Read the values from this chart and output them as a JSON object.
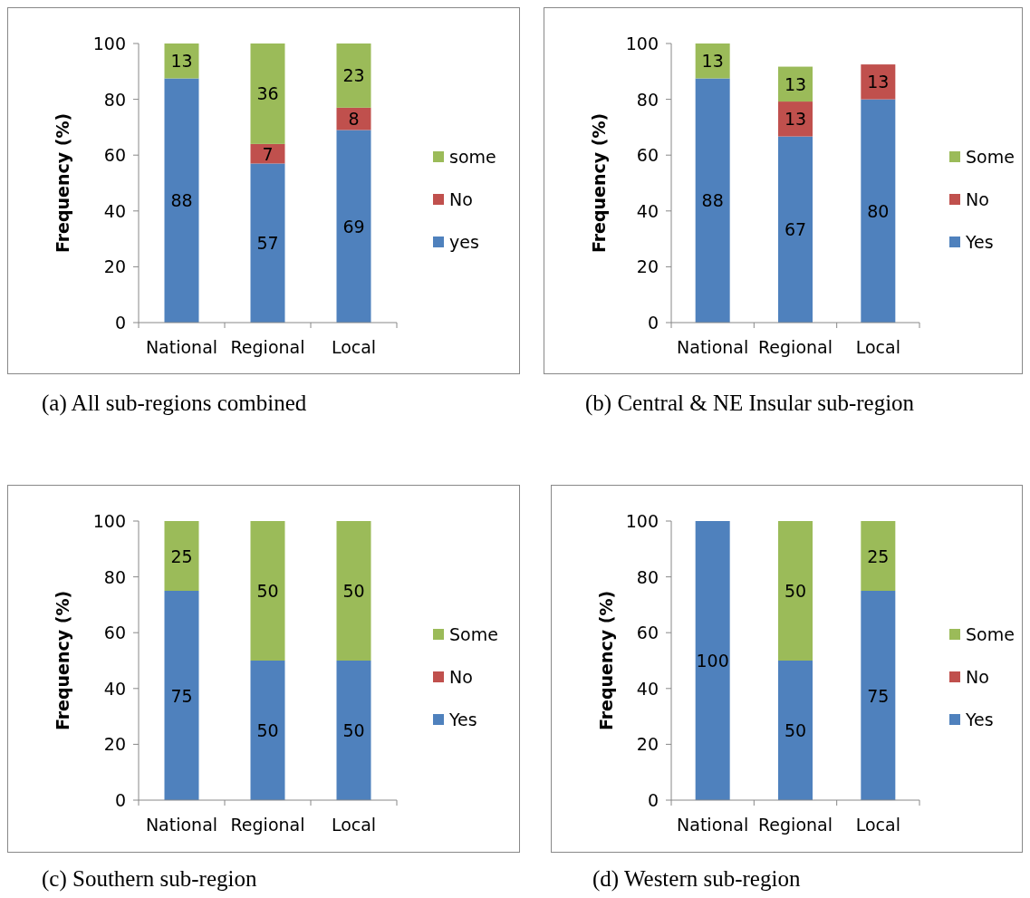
{
  "chart_data": [
    {
      "type": "bar",
      "stacked": true,
      "title": "(a) All sub-regions combined",
      "ylabel": "Frequency (%)",
      "categories": [
        "National",
        "Regional",
        "Local"
      ],
      "ylim": [
        0,
        100
      ],
      "yticks": [
        0,
        20,
        40,
        60,
        80,
        100
      ],
      "legend": "right",
      "series": [
        {
          "name": "yes",
          "color": "#4f81bd",
          "values": [
            87.5,
            57,
            69
          ],
          "value_labels": [
            "88",
            "57",
            "69"
          ]
        },
        {
          "name": "No",
          "color": "#c0504d",
          "values": [
            null,
            7,
            8
          ],
          "value_labels": [
            null,
            "7",
            "8"
          ]
        },
        {
          "name": "some",
          "color": "#9bbb59",
          "values": [
            12.5,
            36,
            23
          ],
          "value_labels": [
            "13",
            "36",
            "23"
          ]
        }
      ]
    },
    {
      "type": "bar",
      "stacked": true,
      "title": "(b) Central & NE Insular sub-region",
      "ylabel": "Frequency (%)",
      "categories": [
        "National",
        "Regional",
        "Local"
      ],
      "ylim": [
        0,
        100
      ],
      "yticks": [
        0,
        20,
        40,
        60,
        80,
        100
      ],
      "legend": "right",
      "series": [
        {
          "name": "Yes",
          "color": "#4f81bd",
          "values": [
            87.5,
            66.7,
            80
          ],
          "value_labels": [
            "88",
            "67",
            "80"
          ]
        },
        {
          "name": "No",
          "color": "#c0504d",
          "values": [
            null,
            12.5,
            12.5
          ],
          "value_labels": [
            null,
            "13",
            "13"
          ]
        },
        {
          "name": "Some",
          "color": "#9bbb59",
          "values": [
            12.5,
            12.5,
            null
          ],
          "value_labels": [
            "13",
            "13",
            null
          ]
        }
      ]
    },
    {
      "type": "bar",
      "stacked": true,
      "title": "(c) Southern sub-region",
      "ylabel": "Frequency (%)",
      "categories": [
        "National",
        "Regional",
        "Local"
      ],
      "ylim": [
        0,
        100
      ],
      "yticks": [
        0,
        20,
        40,
        60,
        80,
        100
      ],
      "legend": "right",
      "series": [
        {
          "name": "Yes",
          "color": "#4f81bd",
          "values": [
            75,
            50,
            50
          ],
          "value_labels": [
            "75",
            "50",
            "50"
          ]
        },
        {
          "name": "No",
          "color": "#c0504d",
          "values": [
            null,
            null,
            null
          ],
          "value_labels": [
            null,
            null,
            null
          ]
        },
        {
          "name": "Some",
          "color": "#9bbb59",
          "values": [
            25,
            50,
            50
          ],
          "value_labels": [
            "25",
            "50",
            "50"
          ]
        }
      ]
    },
    {
      "type": "bar",
      "stacked": true,
      "title": "(d) Western sub-region",
      "ylabel": "Frequency (%)",
      "categories": [
        "National",
        "Regional",
        "Local"
      ],
      "ylim": [
        0,
        100
      ],
      "yticks": [
        0,
        20,
        40,
        60,
        80,
        100
      ],
      "legend": "right",
      "series": [
        {
          "name": "Yes",
          "color": "#4f81bd",
          "values": [
            100,
            50,
            75
          ],
          "value_labels": [
            "100",
            "50",
            "75"
          ]
        },
        {
          "name": "No",
          "color": "#c0504d",
          "values": [
            null,
            null,
            null
          ],
          "value_labels": [
            null,
            null,
            null
          ]
        },
        {
          "name": "Some",
          "color": "#9bbb59",
          "values": [
            null,
            50,
            25
          ],
          "value_labels": [
            null,
            "50",
            "25"
          ]
        }
      ]
    }
  ]
}
